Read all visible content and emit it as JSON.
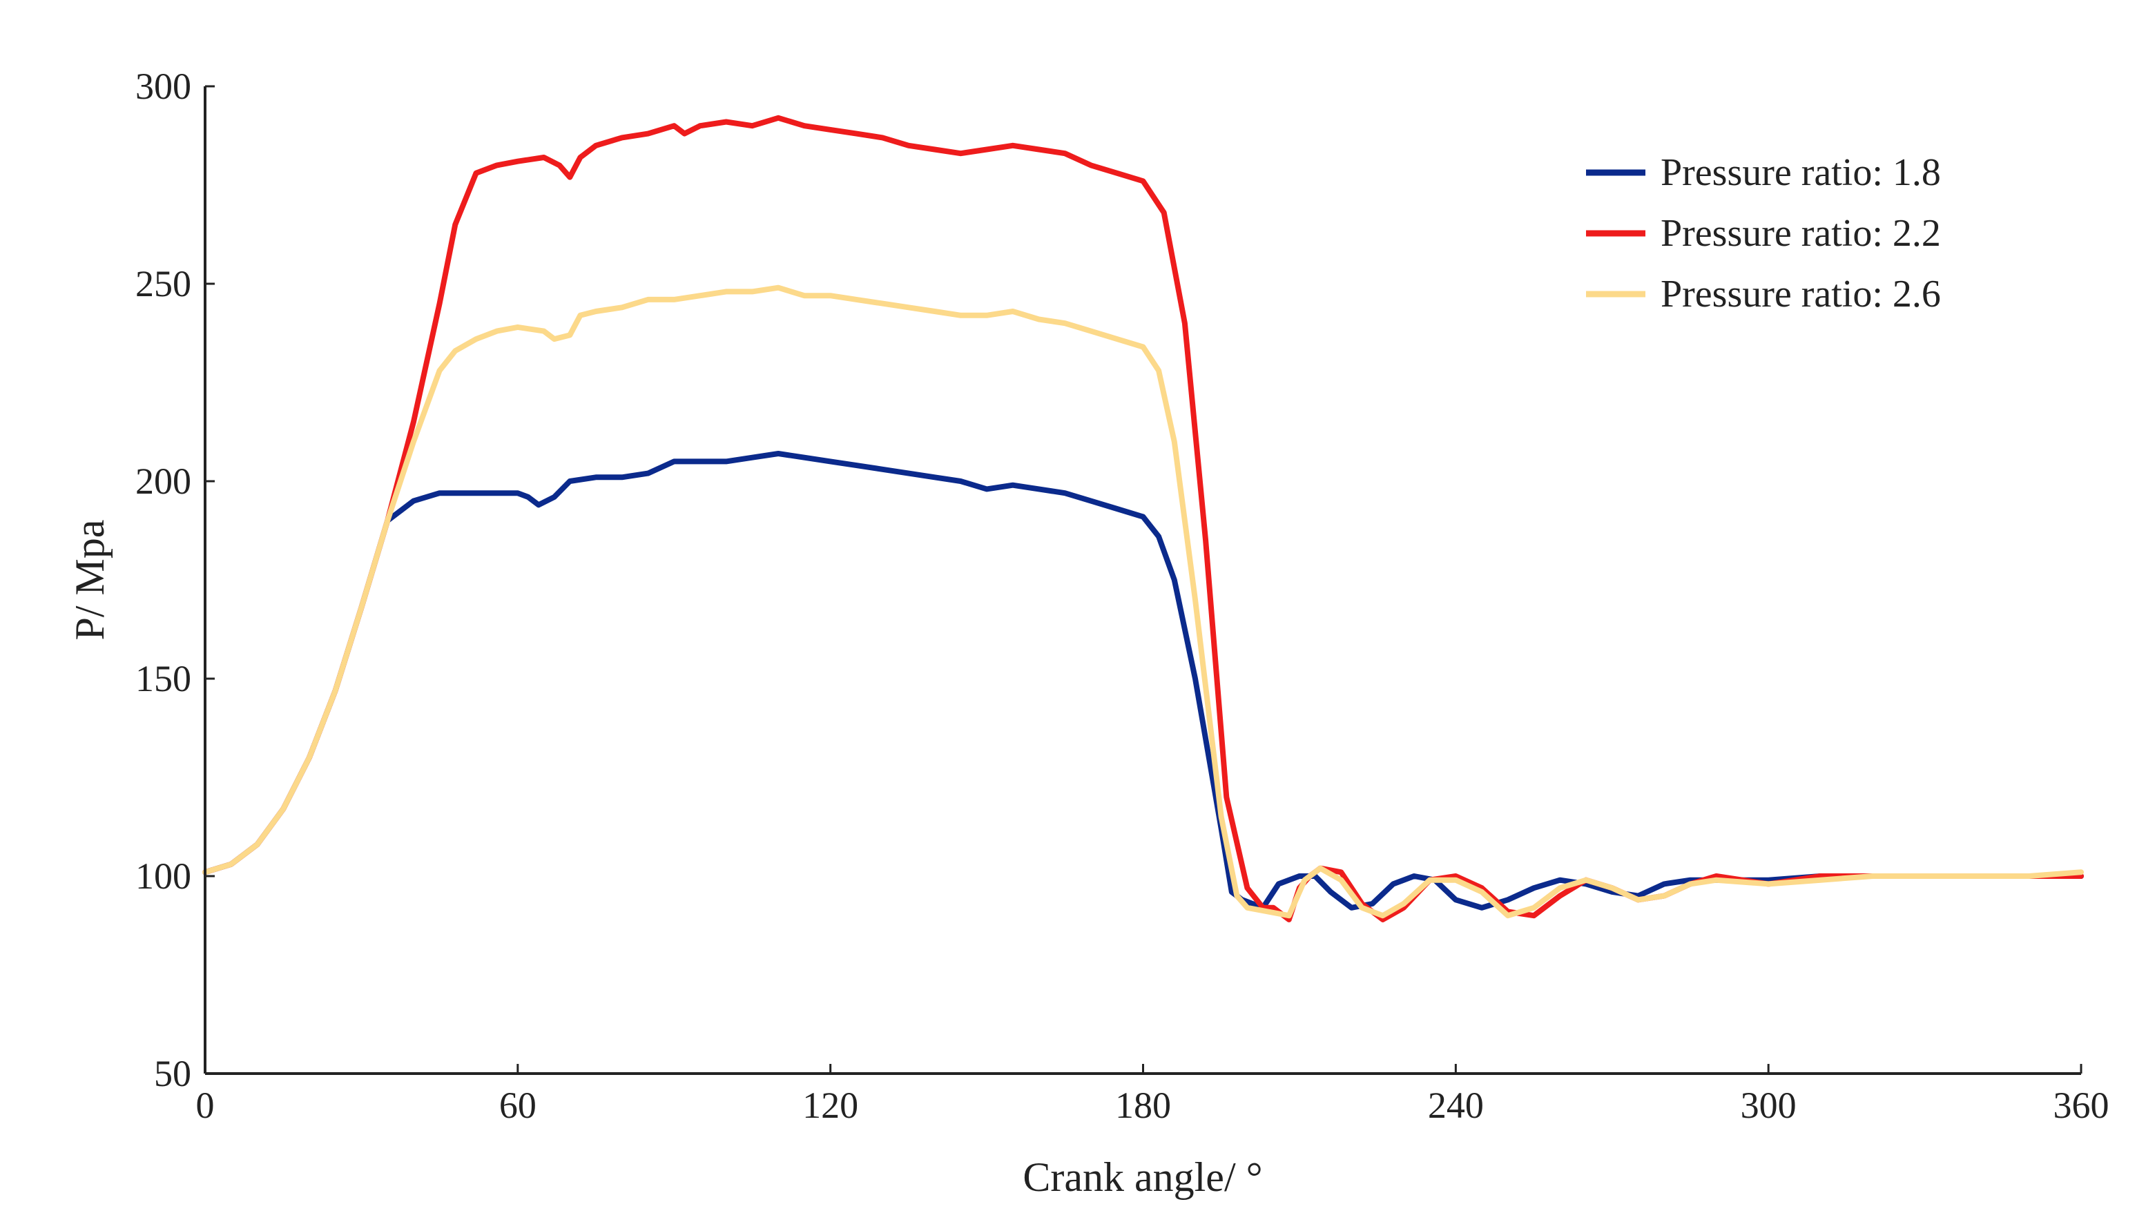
{
  "chart_data": {
    "type": "line",
    "title": "",
    "xlabel": "Crank angle/ °",
    "ylabel": "P/ Mpa",
    "xlim": [
      0,
      360
    ],
    "ylim": [
      50,
      300
    ],
    "xticks": [
      0,
      60,
      120,
      180,
      240,
      300,
      360
    ],
    "yticks": [
      50,
      100,
      150,
      200,
      250,
      300
    ],
    "grid": false,
    "legend_position": "top-right",
    "series": [
      {
        "name": "Pressure ratio: 1.8",
        "color": "#0b2a8c",
        "x": [
          0,
          5,
          10,
          15,
          20,
          25,
          30,
          35,
          40,
          45,
          50,
          55,
          60,
          62,
          64,
          67,
          70,
          75,
          80,
          85,
          90,
          95,
          100,
          105,
          110,
          115,
          120,
          125,
          130,
          135,
          140,
          145,
          150,
          155,
          160,
          165,
          170,
          175,
          180,
          183,
          186,
          190,
          195,
          197,
          199,
          203,
          206,
          210,
          213,
          216,
          220,
          224,
          228,
          232,
          236,
          240,
          245,
          250,
          255,
          260,
          265,
          270,
          275,
          280,
          285,
          290,
          300,
          310,
          320,
          330,
          340,
          350,
          360
        ],
        "y": [
          101,
          103,
          108,
          117,
          130,
          147,
          168,
          190,
          195,
          197,
          197,
          197,
          197,
          196,
          194,
          196,
          200,
          201,
          201,
          202,
          205,
          205,
          205,
          206,
          207,
          206,
          205,
          204,
          203,
          202,
          201,
          200,
          198,
          199,
          198,
          197,
          195,
          193,
          191,
          186,
          175,
          150,
          112,
          96,
          94,
          92,
          98,
          100,
          100,
          96,
          92,
          93,
          98,
          100,
          99,
          94,
          92,
          94,
          97,
          99,
          98,
          96,
          95,
          98,
          99,
          99,
          99,
          100,
          100,
          100,
          100,
          100,
          100
        ]
      },
      {
        "name": "Pressure ratio: 2.2",
        "color": "#ee1c1c",
        "x": [
          0,
          5,
          10,
          15,
          20,
          25,
          30,
          35,
          40,
          45,
          48,
          52,
          56,
          60,
          65,
          68,
          70,
          72,
          75,
          80,
          85,
          90,
          92,
          95,
          100,
          105,
          110,
          115,
          120,
          125,
          130,
          135,
          140,
          145,
          150,
          155,
          160,
          165,
          170,
          175,
          180,
          184,
          188,
          192,
          196,
          200,
          203,
          205,
          208,
          210,
          212,
          214,
          218,
          222,
          226,
          230,
          235,
          240,
          245,
          250,
          255,
          260,
          265,
          270,
          275,
          280,
          285,
          290,
          300,
          310,
          320,
          330,
          340,
          350,
          360
        ],
        "y": [
          101,
          103,
          108,
          117,
          130,
          147,
          168,
          190,
          215,
          245,
          265,
          278,
          280,
          281,
          282,
          280,
          277,
          282,
          285,
          287,
          288,
          290,
          288,
          290,
          291,
          290,
          292,
          290,
          289,
          288,
          287,
          285,
          284,
          283,
          284,
          285,
          284,
          283,
          280,
          278,
          276,
          268,
          240,
          185,
          120,
          97,
          92,
          92,
          89,
          97,
          100,
          102,
          101,
          93,
          89,
          92,
          99,
          100,
          97,
          91,
          90,
          95,
          99,
          97,
          94,
          95,
          98,
          100,
          98,
          100,
          100,
          100,
          100,
          100,
          100
        ]
      },
      {
        "name": "Pressure ratio: 2.6",
        "color": "#fcd98a",
        "x": [
          0,
          5,
          10,
          15,
          20,
          25,
          30,
          35,
          40,
          45,
          48,
          52,
          56,
          60,
          65,
          67,
          70,
          72,
          75,
          80,
          85,
          90,
          95,
          100,
          105,
          110,
          115,
          120,
          125,
          130,
          135,
          140,
          145,
          150,
          155,
          160,
          165,
          170,
          175,
          180,
          183,
          186,
          190,
          195,
          198,
          200,
          204,
          208,
          211,
          214,
          218,
          222,
          226,
          230,
          235,
          240,
          245,
          250,
          255,
          260,
          265,
          270,
          275,
          280,
          285,
          290,
          300,
          310,
          320,
          330,
          340,
          350,
          360
        ],
        "y": [
          101,
          103,
          108,
          117,
          130,
          147,
          168,
          190,
          210,
          228,
          233,
          236,
          238,
          239,
          238,
          236,
          237,
          242,
          243,
          244,
          246,
          246,
          247,
          248,
          248,
          249,
          247,
          247,
          246,
          245,
          244,
          243,
          242,
          242,
          243,
          241,
          240,
          238,
          236,
          234,
          228,
          210,
          170,
          115,
          95,
          92,
          91,
          90,
          99,
          102,
          99,
          92,
          90,
          93,
          99,
          99,
          96,
          90,
          92,
          97,
          99,
          97,
          94,
          95,
          98,
          99,
          98,
          99,
          100,
          100,
          100,
          100,
          101
        ]
      }
    ]
  }
}
